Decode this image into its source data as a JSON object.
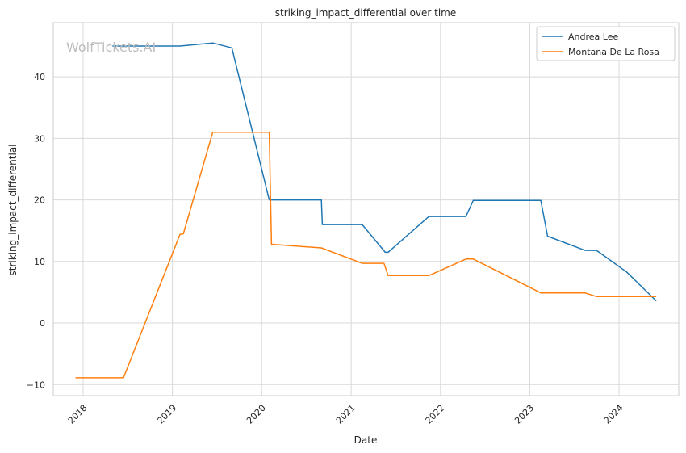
{
  "watermark": "WolfTickets.AI",
  "chart_data": {
    "type": "line",
    "title": "striking_impact_differential over time",
    "xlabel": "Date",
    "ylabel": "striking_impact_differential",
    "xlim": [
      "2017-09-01",
      "2024-09-01"
    ],
    "ylim": [
      -11.8,
      48.8
    ],
    "xticks": [
      {
        "label": "2018",
        "date": "2018-01-01"
      },
      {
        "label": "2019",
        "date": "2019-01-01"
      },
      {
        "label": "2020",
        "date": "2020-01-01"
      },
      {
        "label": "2021",
        "date": "2021-01-01"
      },
      {
        "label": "2022",
        "date": "2022-01-01"
      },
      {
        "label": "2023",
        "date": "2023-01-01"
      },
      {
        "label": "2024",
        "date": "2024-01-01"
      }
    ],
    "yticks": [
      -10,
      0,
      10,
      20,
      30,
      40
    ],
    "grid": true,
    "legend": "top-right",
    "series": [
      {
        "name": "Andrea Lee",
        "color": "#1f77b4",
        "points": [
          [
            "2018-05-01",
            45.0
          ],
          [
            "2019-02-01",
            45.0
          ],
          [
            "2019-06-15",
            45.5
          ],
          [
            "2019-09-01",
            44.7
          ],
          [
            "2020-02-01",
            20.0
          ],
          [
            "2020-09-01",
            20.0
          ],
          [
            "2020-09-05",
            16.0
          ],
          [
            "2021-02-15",
            16.0
          ],
          [
            "2021-05-20",
            11.5
          ],
          [
            "2021-06-01",
            11.5
          ],
          [
            "2021-11-15",
            17.3
          ],
          [
            "2022-04-15",
            17.3
          ],
          [
            "2022-05-15",
            19.9
          ],
          [
            "2023-02-15",
            19.9
          ],
          [
            "2023-03-15",
            14.1
          ],
          [
            "2023-08-15",
            11.8
          ],
          [
            "2023-10-01",
            11.8
          ],
          [
            "2024-02-01",
            8.3
          ],
          [
            "2024-06-01",
            3.6
          ]
        ]
      },
      {
        "name": "Montana De La Rosa",
        "color": "#ff7f0e",
        "points": [
          [
            "2017-12-01",
            -8.9
          ],
          [
            "2018-06-15",
            -8.9
          ],
          [
            "2019-02-01",
            14.4
          ],
          [
            "2019-02-15",
            14.5
          ],
          [
            "2019-06-15",
            31.0
          ],
          [
            "2020-02-01",
            31.0
          ],
          [
            "2020-02-10",
            12.8
          ],
          [
            "2020-09-01",
            12.2
          ],
          [
            "2021-02-15",
            9.7
          ],
          [
            "2021-05-15",
            9.7
          ],
          [
            "2021-06-01",
            7.7
          ],
          [
            "2021-11-15",
            7.7
          ],
          [
            "2022-04-15",
            10.4
          ],
          [
            "2022-05-15",
            10.4
          ],
          [
            "2023-02-15",
            4.9
          ],
          [
            "2023-08-15",
            4.9
          ],
          [
            "2023-10-01",
            4.3
          ],
          [
            "2024-06-01",
            4.3
          ]
        ]
      }
    ]
  }
}
